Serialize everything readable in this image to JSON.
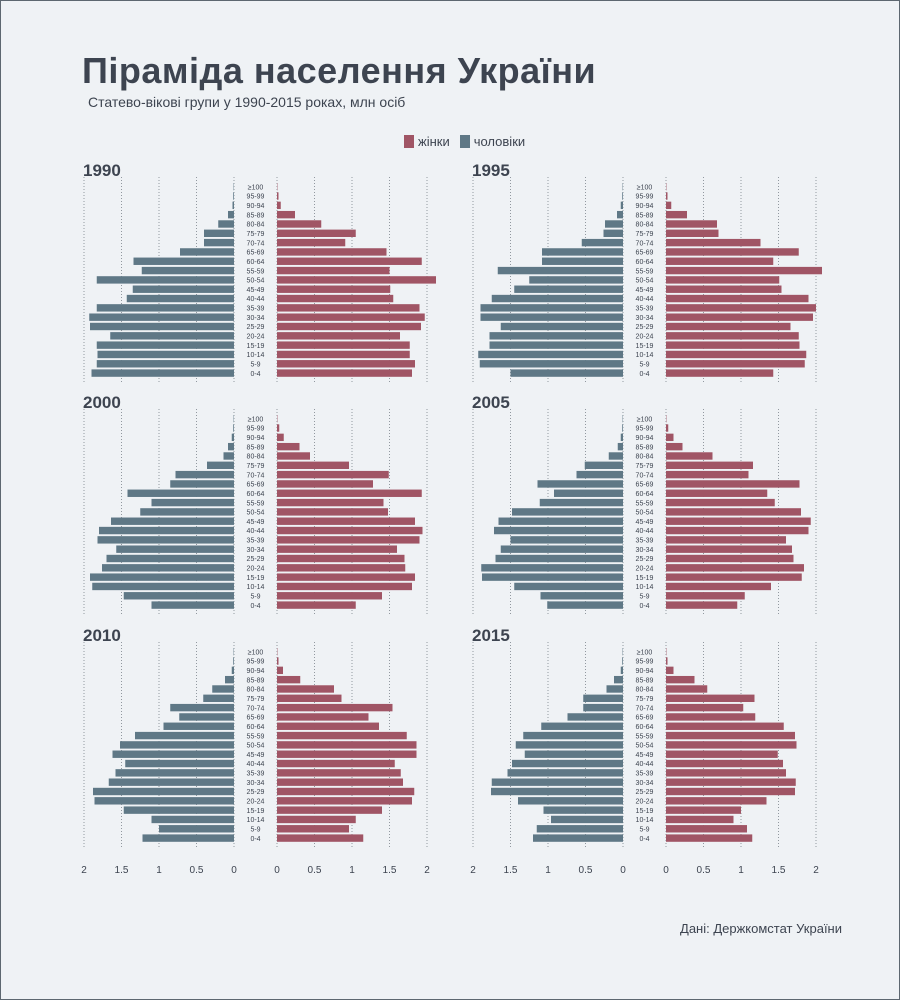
{
  "header": {
    "title": "Піраміда населення України",
    "subtitle": "Статево-вікові групи у 1990-2015 роках, млн осіб"
  },
  "legend": {
    "female_label": "жінки",
    "male_label": "чоловіки"
  },
  "source": "Дані: Держкомстат України",
  "colors": {
    "female": "#a05565",
    "male": "#5f7886",
    "background": "#eff2f5",
    "text": "#3d4450",
    "grid": "#7a828a"
  },
  "chart_data": {
    "type": "bar",
    "subtype": "population-pyramid",
    "unit": "млн осіб",
    "age_groups": [
      "0-4",
      "5-9",
      "10-14",
      "15-19",
      "20-24",
      "25-29",
      "30-34",
      "35-39",
      "40-44",
      "45-49",
      "50-54",
      "55-59",
      "60-64",
      "65-69",
      "70-74",
      "75-79",
      "80-84",
      "85-89",
      "90-94",
      "95-99",
      "≥100"
    ],
    "xlim": [
      0,
      2
    ],
    "male_ticks": [
      "2",
      "1.5",
      "1",
      "0.5",
      "0"
    ],
    "female_ticks": [
      "0",
      "0.5",
      "1",
      "1.5",
      "2"
    ],
    "series": [
      {
        "year": "1990",
        "male": [
          1.9,
          1.83,
          1.82,
          1.83,
          1.65,
          1.92,
          1.93,
          1.83,
          1.43,
          1.35,
          1.83,
          1.23,
          1.34,
          0.72,
          0.4,
          0.4,
          0.21,
          0.08,
          0.02,
          0.01,
          0.005
        ],
        "female": [
          1.8,
          1.84,
          1.77,
          1.77,
          1.64,
          1.92,
          1.97,
          1.9,
          1.55,
          1.51,
          2.12,
          1.5,
          1.93,
          1.46,
          0.91,
          1.05,
          0.59,
          0.24,
          0.05,
          0.02,
          0.005
        ]
      },
      {
        "year": "1995",
        "male": [
          1.5,
          1.91,
          1.93,
          1.78,
          1.78,
          1.63,
          1.9,
          1.9,
          1.75,
          1.45,
          1.25,
          1.67,
          1.08,
          1.08,
          0.55,
          0.26,
          0.24,
          0.08,
          0.03,
          0.01,
          0.005
        ],
        "female": [
          1.43,
          1.85,
          1.87,
          1.78,
          1.77,
          1.66,
          1.96,
          2.0,
          1.9,
          1.54,
          1.51,
          2.08,
          1.43,
          1.77,
          1.26,
          0.7,
          0.68,
          0.28,
          0.07,
          0.02,
          0.005
        ]
      },
      {
        "year": "2000",
        "male": [
          1.1,
          1.47,
          1.89,
          1.92,
          1.76,
          1.7,
          1.57,
          1.82,
          1.8,
          1.64,
          1.25,
          1.1,
          1.42,
          0.85,
          0.78,
          0.36,
          0.14,
          0.08,
          0.03,
          0.01,
          0.005
        ],
        "female": [
          1.05,
          1.4,
          1.8,
          1.84,
          1.71,
          1.7,
          1.6,
          1.9,
          1.94,
          1.84,
          1.48,
          1.42,
          1.93,
          1.28,
          1.49,
          0.96,
          0.44,
          0.3,
          0.09,
          0.03,
          0.005
        ]
      },
      {
        "year": "2005",
        "male": [
          1.01,
          1.1,
          1.45,
          1.88,
          1.89,
          1.7,
          1.63,
          1.5,
          1.72,
          1.66,
          1.48,
          1.11,
          0.92,
          1.14,
          0.62,
          0.51,
          0.19,
          0.07,
          0.03,
          0.01,
          0.005
        ],
        "female": [
          0.95,
          1.05,
          1.4,
          1.81,
          1.84,
          1.7,
          1.68,
          1.6,
          1.9,
          1.93,
          1.8,
          1.45,
          1.35,
          1.78,
          1.1,
          1.16,
          0.62,
          0.22,
          0.1,
          0.03,
          0.005
        ]
      },
      {
        "year": "2010",
        "male": [
          1.22,
          1.0,
          1.1,
          1.47,
          1.86,
          1.88,
          1.67,
          1.58,
          1.45,
          1.62,
          1.52,
          1.32,
          0.94,
          0.73,
          0.85,
          0.41,
          0.29,
          0.12,
          0.03,
          0.01,
          0.005
        ],
        "female": [
          1.15,
          0.96,
          1.05,
          1.4,
          1.8,
          1.83,
          1.68,
          1.65,
          1.57,
          1.86,
          1.86,
          1.73,
          1.36,
          1.22,
          1.54,
          0.86,
          0.76,
          0.31,
          0.08,
          0.02,
          0.005
        ]
      },
      {
        "year": "2015",
        "male": [
          1.2,
          1.15,
          0.96,
          1.06,
          1.4,
          1.76,
          1.75,
          1.54,
          1.48,
          1.31,
          1.43,
          1.33,
          1.09,
          0.74,
          0.53,
          0.53,
          0.22,
          0.12,
          0.03,
          0.01,
          0.005
        ],
        "female": [
          1.15,
          1.08,
          0.9,
          1.0,
          1.34,
          1.72,
          1.73,
          1.6,
          1.56,
          1.49,
          1.74,
          1.72,
          1.57,
          1.19,
          1.03,
          1.18,
          0.55,
          0.38,
          0.1,
          0.02,
          0.005
        ]
      }
    ]
  }
}
